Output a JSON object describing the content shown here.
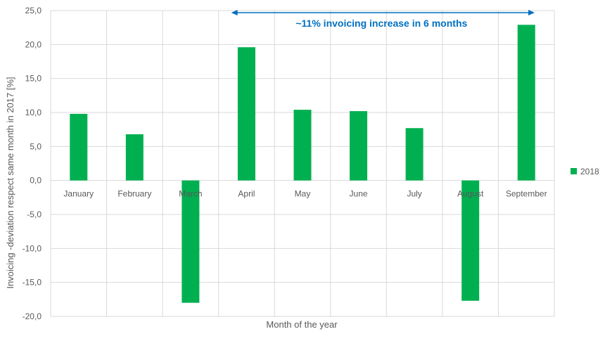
{
  "chart_data": {
    "type": "bar",
    "categories": [
      "January",
      "February",
      "March",
      "April",
      "May",
      "June",
      "July",
      "August",
      "September"
    ],
    "series": [
      {
        "name": "2018",
        "values": [
          9.8,
          6.8,
          -18.0,
          19.6,
          10.4,
          10.2,
          7.7,
          -17.7,
          22.9
        ],
        "color": "#00b050"
      }
    ],
    "xlabel": "Month of the year",
    "ylabel": "Invoicing -deviation respect same month in 2017 [%]",
    "ylim": [
      -20,
      25
    ],
    "yticks": [
      25,
      20,
      15,
      10,
      5,
      0,
      -5,
      -10,
      -15,
      -20
    ],
    "ytick_labels": [
      "25,0",
      "20,0",
      "15,0",
      "10,0",
      "5,0",
      "0,0",
      "-5,0",
      "-10,0",
      "-15,0",
      "-20,0"
    ],
    "grid": true,
    "legend_position": "right",
    "annotation": {
      "text": "~11% invoicing increase in 6 months",
      "from_category": "April",
      "to_category": "September",
      "color": "#0070c0"
    }
  }
}
